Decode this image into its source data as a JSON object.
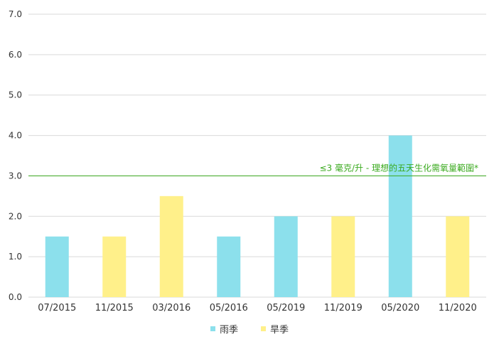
{
  "chart_data": {
    "type": "bar",
    "categories": [
      "07/2015",
      "11/2015",
      "03/2016",
      "05/2016",
      "05/2019",
      "11/2019",
      "05/2020",
      "11/2020"
    ],
    "values": [
      1.5,
      1.5,
      2.5,
      1.5,
      2.0,
      2.0,
      4.0,
      2.0
    ],
    "season": [
      "rainy",
      "dry",
      "dry",
      "rainy",
      "rainy",
      "dry",
      "rainy",
      "dry"
    ],
    "ylim": [
      0,
      7
    ],
    "yticks": [
      "0.0",
      "1.0",
      "2.0",
      "3.0",
      "4.0",
      "5.0",
      "6.0",
      "7.0"
    ],
    "grid": true,
    "series": [
      {
        "key": "rainy",
        "name": "雨季",
        "color": "#8ce0ec"
      },
      {
        "key": "dry",
        "name": "旱季",
        "color": "#fff08a"
      }
    ],
    "reference_line": {
      "value": 3.0,
      "label": "≤3 毫克/升 - 理想的五天生化需氧量範圍*",
      "color": "#3aaa1e"
    },
    "legend_position": "bottom-center"
  }
}
